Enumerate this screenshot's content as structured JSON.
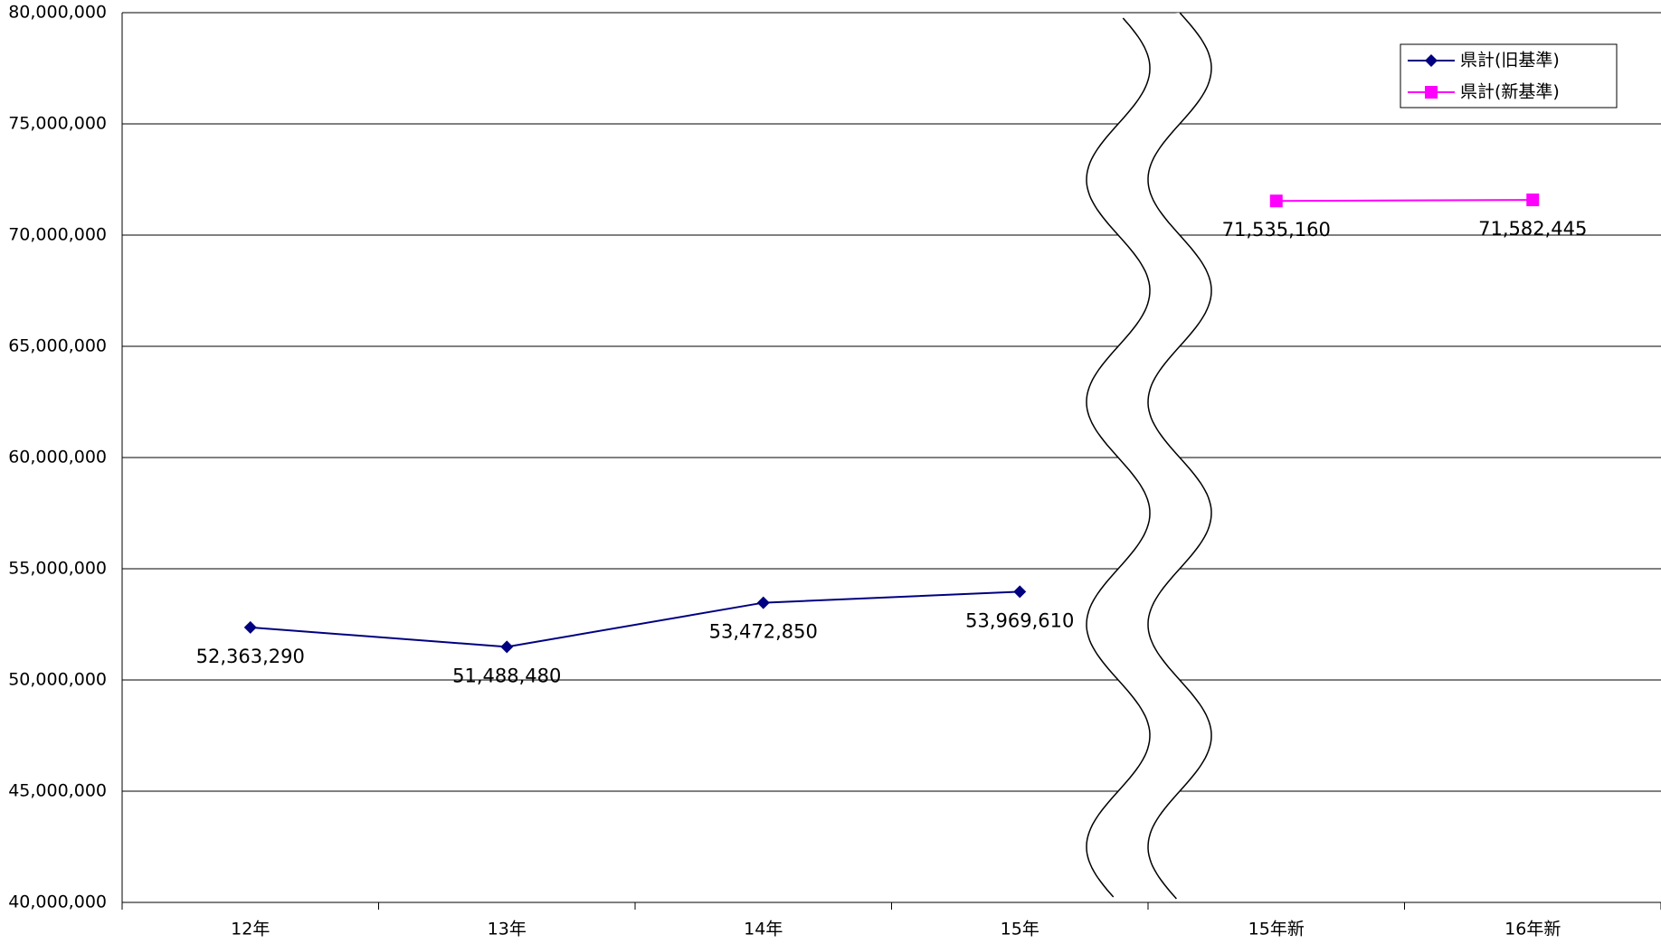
{
  "chart_data": {
    "type": "line",
    "categories": [
      "12年",
      "13年",
      "14年",
      "15年",
      "15年新",
      "16年新"
    ],
    "series": [
      {
        "name": "県計(旧基準)",
        "color": "#000080",
        "marker": "diamond",
        "values": [
          52363290,
          51488480,
          53472850,
          53969610,
          null,
          null
        ],
        "value_labels": [
          "52,363,290",
          "51,488,480",
          "53,472,850",
          "53,969,610",
          null,
          null
        ]
      },
      {
        "name": "県計(新基準)",
        "color": "#ff00ff",
        "marker": "square",
        "values": [
          null,
          null,
          null,
          null,
          71535160,
          71582445
        ],
        "value_labels": [
          null,
          null,
          null,
          null,
          "71,535,160",
          "71,582,445"
        ]
      }
    ],
    "ylim": [
      40000000,
      80000000
    ],
    "yticks": [
      {
        "value": 40000000,
        "label": "40,000,000"
      },
      {
        "value": 45000000,
        "label": "45,000,000"
      },
      {
        "value": 50000000,
        "label": "50,000,000"
      },
      {
        "value": 55000000,
        "label": "55,000,000"
      },
      {
        "value": 60000000,
        "label": "60,000,000"
      },
      {
        "value": 65000000,
        "label": "65,000,000"
      },
      {
        "value": 70000000,
        "label": "70,000,000"
      },
      {
        "value": 75000000,
        "label": "75,000,000"
      },
      {
        "value": 80000000,
        "label": "80,000,000"
      }
    ],
    "grid": true,
    "legend": "top-right"
  }
}
